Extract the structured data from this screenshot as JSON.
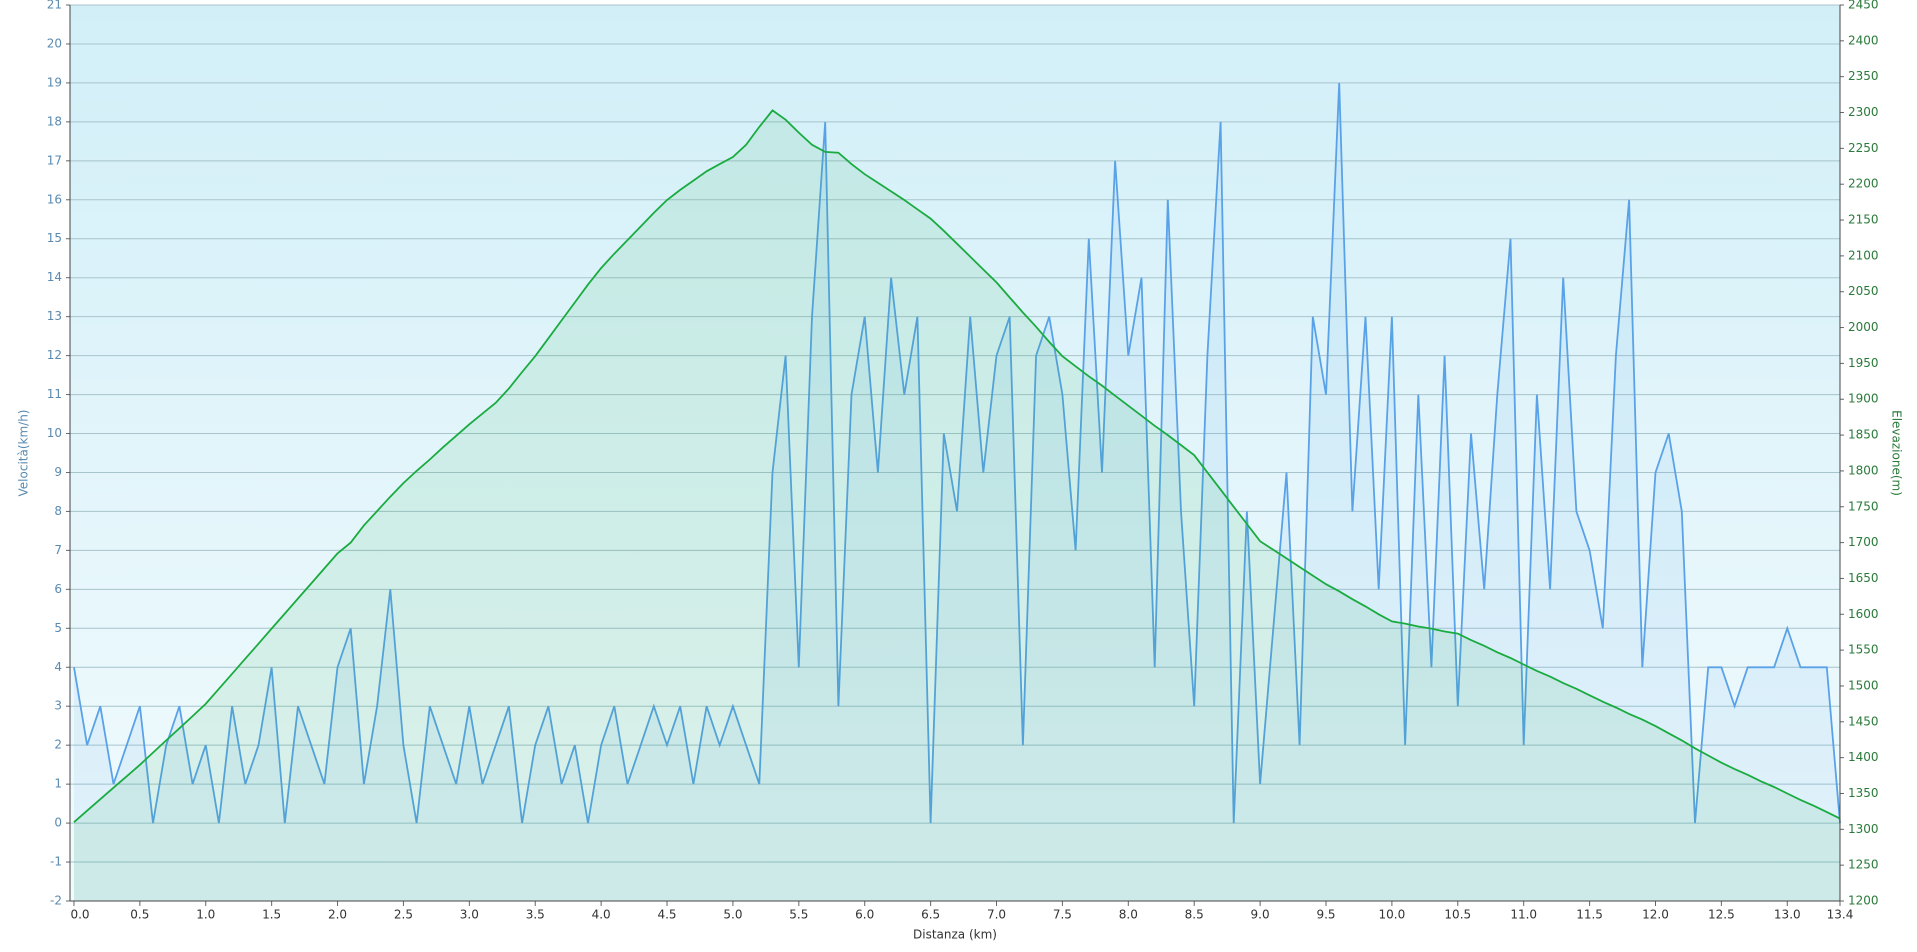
{
  "chart_data": {
    "type": "line",
    "x_label": "Distanza  (km)",
    "y_label": "Velocità(km/h)",
    "y2_label": "Elevazione(m)",
    "x": [
      0,
      0.1,
      0.2,
      0.3,
      0.4,
      0.5,
      0.6,
      0.7,
      0.8,
      0.9,
      1,
      1.1,
      1.2,
      1.3,
      1.4,
      1.5,
      1.6,
      1.7,
      1.8,
      1.9,
      2,
      2.1,
      2.2,
      2.3,
      2.4,
      2.5,
      2.6,
      2.7,
      2.8,
      2.9,
      3,
      3.1,
      3.2,
      3.3,
      3.4,
      3.5,
      3.6,
      3.7,
      3.8,
      3.9,
      4,
      4.1,
      4.2,
      4.3,
      4.4,
      4.5,
      4.6,
      4.7,
      4.8,
      4.9,
      5,
      5.1,
      5.2,
      5.3,
      5.4,
      5.5,
      5.6,
      5.7,
      5.8,
      5.9,
      6,
      6.1,
      6.2,
      6.3,
      6.4,
      6.5,
      6.6,
      6.7,
      6.8,
      6.9,
      7,
      7.1,
      7.2,
      7.3,
      7.4,
      7.5,
      7.6,
      7.7,
      7.8,
      7.9,
      8,
      8.1,
      8.2,
      8.3,
      8.4,
      8.5,
      8.6,
      8.7,
      8.8,
      8.9,
      9,
      9.1,
      9.2,
      9.3,
      9.4,
      9.5,
      9.6,
      9.7,
      9.8,
      9.9,
      10,
      10.1,
      10.2,
      10.3,
      10.4,
      10.5,
      10.6,
      10.7,
      10.8,
      10.9,
      11,
      11.1,
      11.2,
      11.3,
      11.4,
      11.5,
      11.6,
      11.7,
      11.8,
      11.9,
      12,
      12.1,
      12.2,
      12.3,
      12.4,
      12.5,
      12.6,
      12.7,
      12.8,
      12.9,
      13,
      13.1,
      13.2,
      13.3,
      13.4
    ],
    "series": [
      {
        "name": "Velocità",
        "color": "#5aa2e8",
        "values": [
          4,
          2,
          3,
          1,
          2,
          3,
          0,
          2,
          3,
          1,
          2,
          0,
          3,
          1,
          2,
          4,
          0,
          3,
          2,
          1,
          4,
          5,
          1,
          3,
          6,
          2,
          0,
          3,
          2,
          1,
          3,
          1,
          2,
          3,
          0,
          2,
          3,
          1,
          2,
          0,
          2,
          3,
          1,
          2,
          3,
          2,
          3,
          1,
          3,
          2,
          3,
          2,
          1,
          9,
          12,
          4,
          13,
          18,
          3,
          11,
          13,
          9,
          14,
          11,
          13,
          0,
          10,
          8,
          13,
          9,
          12,
          13,
          2,
          12,
          13,
          11,
          7,
          15,
          9,
          17,
          12,
          14,
          4,
          16,
          8,
          3,
          12,
          18,
          0,
          8,
          1,
          5,
          9,
          2,
          13,
          11,
          19,
          8,
          13,
          6,
          13,
          2,
          11,
          4,
          12,
          3,
          10,
          6,
          11,
          15,
          2,
          11,
          6,
          14,
          8,
          7,
          5,
          12,
          16,
          4,
          9,
          10,
          8,
          0,
          4,
          4,
          3,
          4,
          4,
          4,
          5,
          4,
          4,
          4,
          0
        ]
      },
      {
        "name": "Elevazione",
        "color": "#1aab40",
        "axis": "y2",
        "values": [
          1310,
          1326,
          1342,
          1358,
          1374,
          1390,
          1407,
          1424,
          1441,
          1458,
          1475,
          1496,
          1517,
          1538,
          1559,
          1580,
          1601,
          1622,
          1643,
          1664,
          1685,
          1700,
          1724,
          1744,
          1764,
          1783,
          1800,
          1816,
          1833,
          1849,
          1865,
          1880,
          1895,
          1915,
          1938,
          1960,
          1985,
          2010,
          2035,
          2060,
          2083,
          2103,
          2122,
          2141,
          2160,
          2178,
          2192,
          2205,
          2218,
          2228,
          2238,
          2255,
          2280,
          2303,
          2290,
          2272,
          2255,
          2245,
          2244,
          2228,
          2214,
          2202,
          2190,
          2178,
          2165,
          2152,
          2135,
          2117,
          2099,
          2081,
          2063,
          2042,
          2021,
          2001,
          1980,
          1960,
          1946,
          1932,
          1919,
          1905,
          1891,
          1877,
          1863,
          1850,
          1836,
          1822,
          1798,
          1774,
          1750,
          1726,
          1702,
          1690,
          1678,
          1666,
          1654,
          1642,
          1632,
          1621,
          1611,
          1600,
          1590,
          1587,
          1583,
          1580,
          1576,
          1573,
          1564,
          1556,
          1547,
          1539,
          1530,
          1521,
          1513,
          1504,
          1496,
          1487,
          1478,
          1470,
          1461,
          1453,
          1444,
          1434,
          1424,
          1413,
          1403,
          1393,
          1384,
          1376,
          1367,
          1359,
          1350,
          1341,
          1333,
          1324,
          1315
        ]
      }
    ],
    "xlim": [
      -0.03,
      13.4
    ],
    "xticks": [
      {
        "value": 0,
        "label": "0.0"
      },
      0.5,
      {
        "value": 1,
        "label": "1.0"
      },
      1.5,
      {
        "value": 2,
        "label": "2.0"
      },
      2.5,
      {
        "value": 3,
        "label": "3.0"
      },
      3.5,
      {
        "value": 4,
        "label": "4.0"
      },
      4.5,
      {
        "value": 5,
        "label": "5.0"
      },
      5.5,
      {
        "value": 6,
        "label": "6.0"
      },
      6.5,
      {
        "value": 7,
        "label": "7.0"
      },
      7.5,
      {
        "value": 8,
        "label": "8.0"
      },
      8.5,
      {
        "value": 9,
        "label": "9.0"
      },
      9.5,
      {
        "value": 10,
        "label": "10.0"
      },
      10.5,
      {
        "value": 11,
        "label": "11.0"
      },
      11.5,
      {
        "value": 12,
        "label": "12.0"
      },
      12.5,
      {
        "value": 13,
        "label": "13.0"
      },
      13.4
    ],
    "ylim": [
      -2,
      21
    ],
    "yticks": [
      -2,
      -1,
      0,
      1,
      2,
      3,
      4,
      5,
      6,
      7,
      8,
      9,
      10,
      11,
      12,
      13,
      14,
      15,
      16,
      17,
      18,
      19,
      20,
      21
    ],
    "y2lim": [
      1200,
      2450
    ],
    "y2ticks": [
      1200,
      1250,
      1300,
      1350,
      1400,
      1450,
      1500,
      1550,
      1600,
      1650,
      1700,
      1750,
      1800,
      1850,
      1900,
      1950,
      2000,
      2050,
      2100,
      2150,
      2200,
      2250,
      2300,
      2350,
      2400,
      2450
    ],
    "grid": true
  }
}
